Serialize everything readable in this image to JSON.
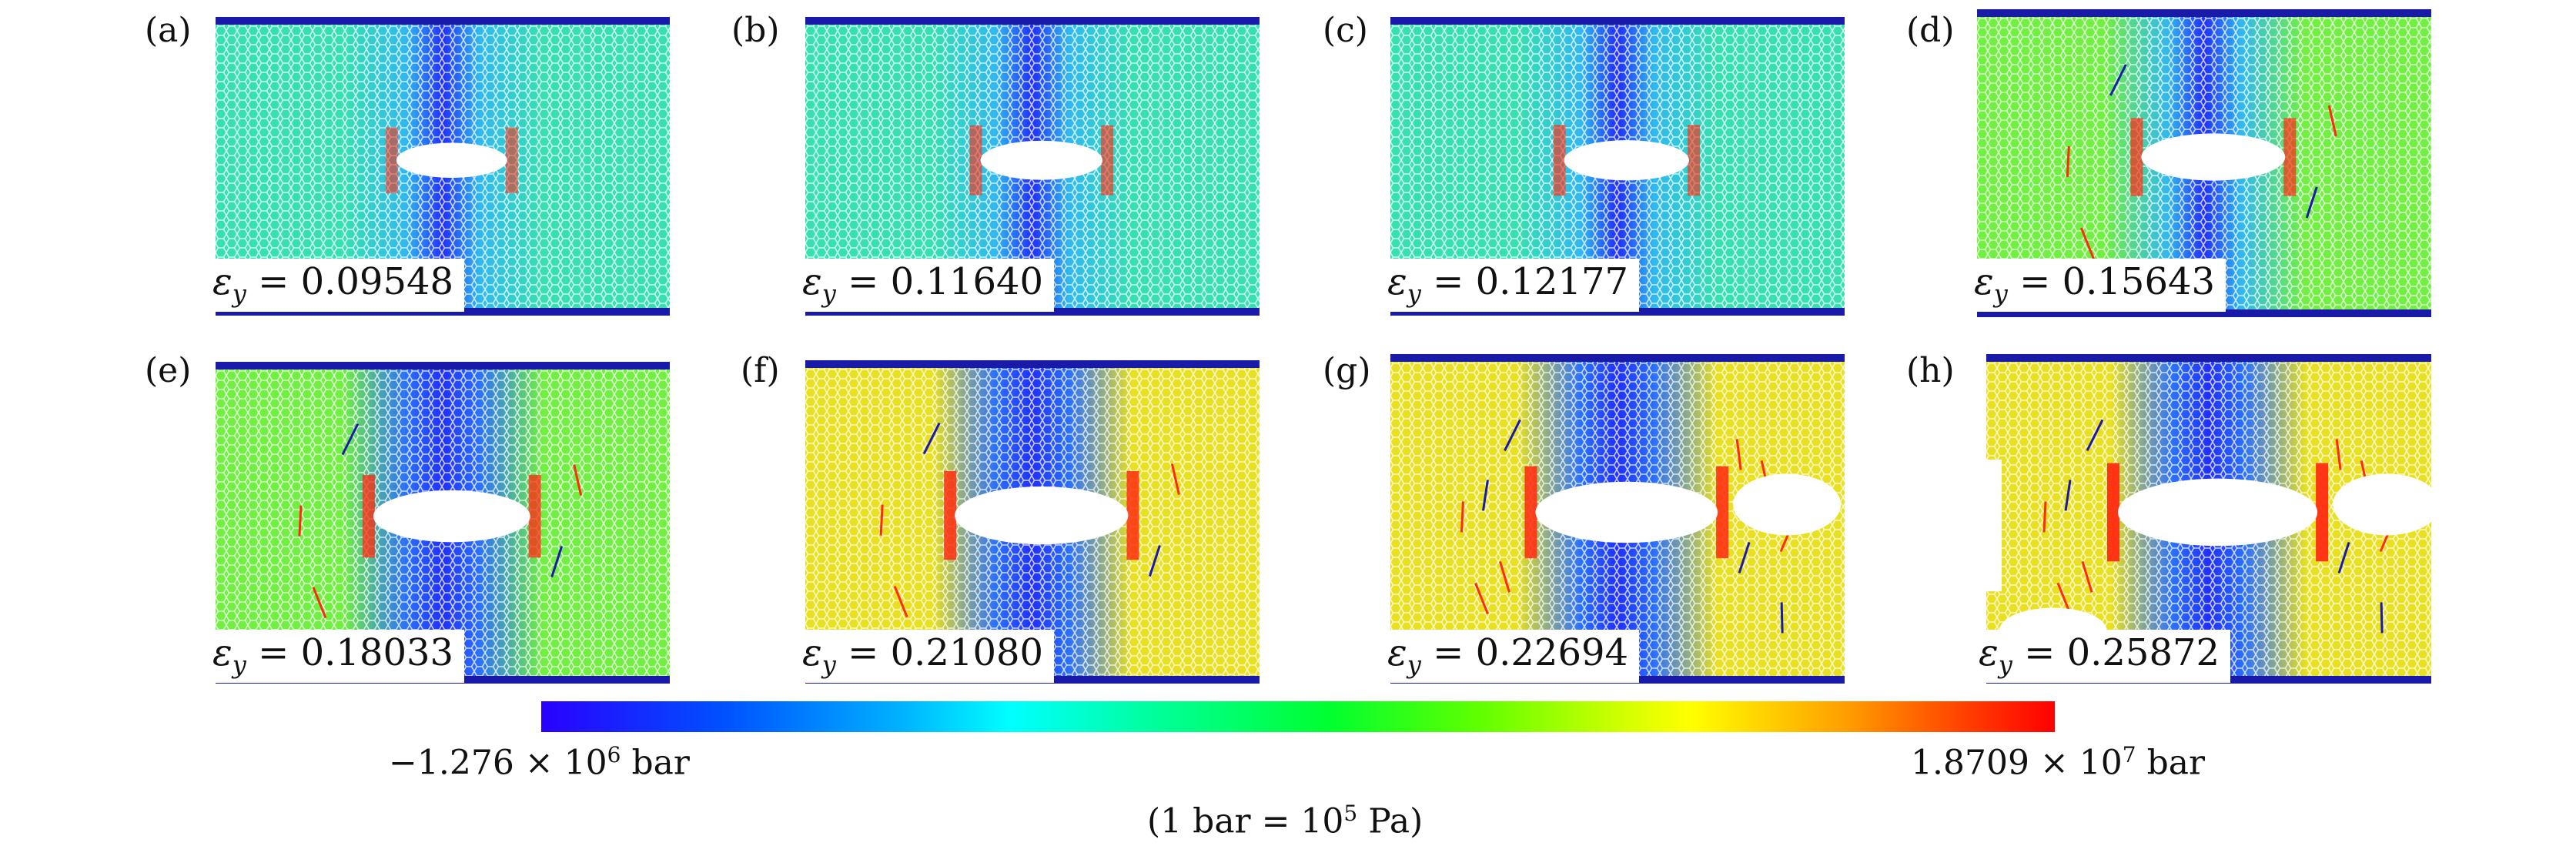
{
  "panels": [
    {
      "label": "(a)",
      "strain_value": "0.09548",
      "strain_level": 0.09548,
      "hole": "intact"
    },
    {
      "label": "(b)",
      "strain_value": "0.11640",
      "strain_level": 0.1164,
      "hole": "intact"
    },
    {
      "label": "(c)",
      "strain_value": "0.12177",
      "strain_level": 0.12177,
      "hole": "intact"
    },
    {
      "label": "(d)",
      "strain_value": "0.15643",
      "strain_level": 0.15643,
      "hole": "cracking"
    },
    {
      "label": "(e)",
      "strain_value": "0.18033",
      "strain_level": 0.18033,
      "hole": "cracking"
    },
    {
      "label": "(f)",
      "strain_value": "0.21080",
      "strain_level": 0.2108,
      "hole": "cracking"
    },
    {
      "label": "(g)",
      "strain_value": "0.22694",
      "strain_level": 0.22694,
      "hole": "fracture"
    },
    {
      "label": "(h)",
      "strain_value": "0.25872",
      "strain_level": 0.25872,
      "hole": "fracture"
    }
  ],
  "strain_symbol": "ε",
  "strain_subscript": "y",
  "colorbar": {
    "min_label_mantissa": "−1.276 × 10",
    "min_label_exp": "6",
    "min_label_unit": " bar",
    "max_label_mantissa": "1.8709 × 10",
    "max_label_exp": "7",
    "max_label_unit": " bar",
    "colors": [
      "#2a00ff",
      "#00ffff",
      "#00ff30",
      "#ffff00",
      "#ff0000"
    ]
  },
  "unit_note": {
    "prefix": "(1 bar = 10",
    "exp": "5",
    "suffix": " Pa)"
  }
}
